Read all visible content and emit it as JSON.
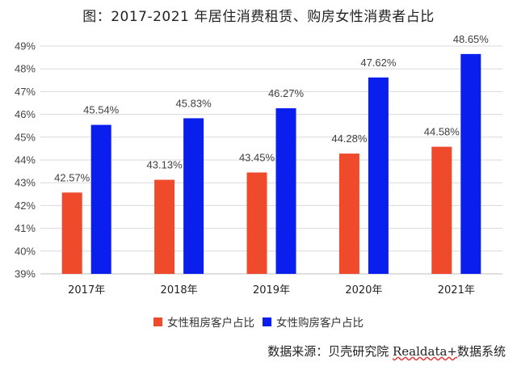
{
  "title": "图：2017-2021 年居住消费租赁、购房女性消费者占比",
  "source": {
    "prefix": "数据来源：贝壳研究院 ",
    "brand": "Realdata+",
    "suffix": "数据系统"
  },
  "colors": {
    "rent": "#ee4a2b",
    "buy": "#0a1eee",
    "grid": "#d9d9d9",
    "axis_text": "#444444"
  },
  "chart_data": {
    "type": "bar",
    "title": "图：2017-2021 年居住消费租赁、购房女性消费者占比",
    "categories": [
      "2017年",
      "2018年",
      "2019年",
      "2020年",
      "2021年"
    ],
    "series": [
      {
        "name": "女性租房客户占比",
        "values": [
          42.57,
          43.13,
          43.45,
          44.28,
          44.58
        ],
        "labels": [
          "42.57%",
          "43.13%",
          "43.45%",
          "44.28%",
          "44.58%"
        ]
      },
      {
        "name": "女性购房客户占比",
        "values": [
          45.54,
          45.83,
          46.27,
          47.62,
          48.65
        ],
        "labels": [
          "45.54%",
          "45.83%",
          "46.27%",
          "47.62%",
          "48.65%"
        ]
      }
    ],
    "ylim": [
      39,
      49
    ],
    "yticks": [
      39,
      40,
      41,
      42,
      43,
      44,
      45,
      46,
      47,
      48,
      49
    ],
    "ytick_labels": [
      "39%",
      "40%",
      "41%",
      "42%",
      "43%",
      "44%",
      "45%",
      "46%",
      "47%",
      "48%",
      "49%"
    ],
    "grid": true,
    "legend": "bottom"
  }
}
